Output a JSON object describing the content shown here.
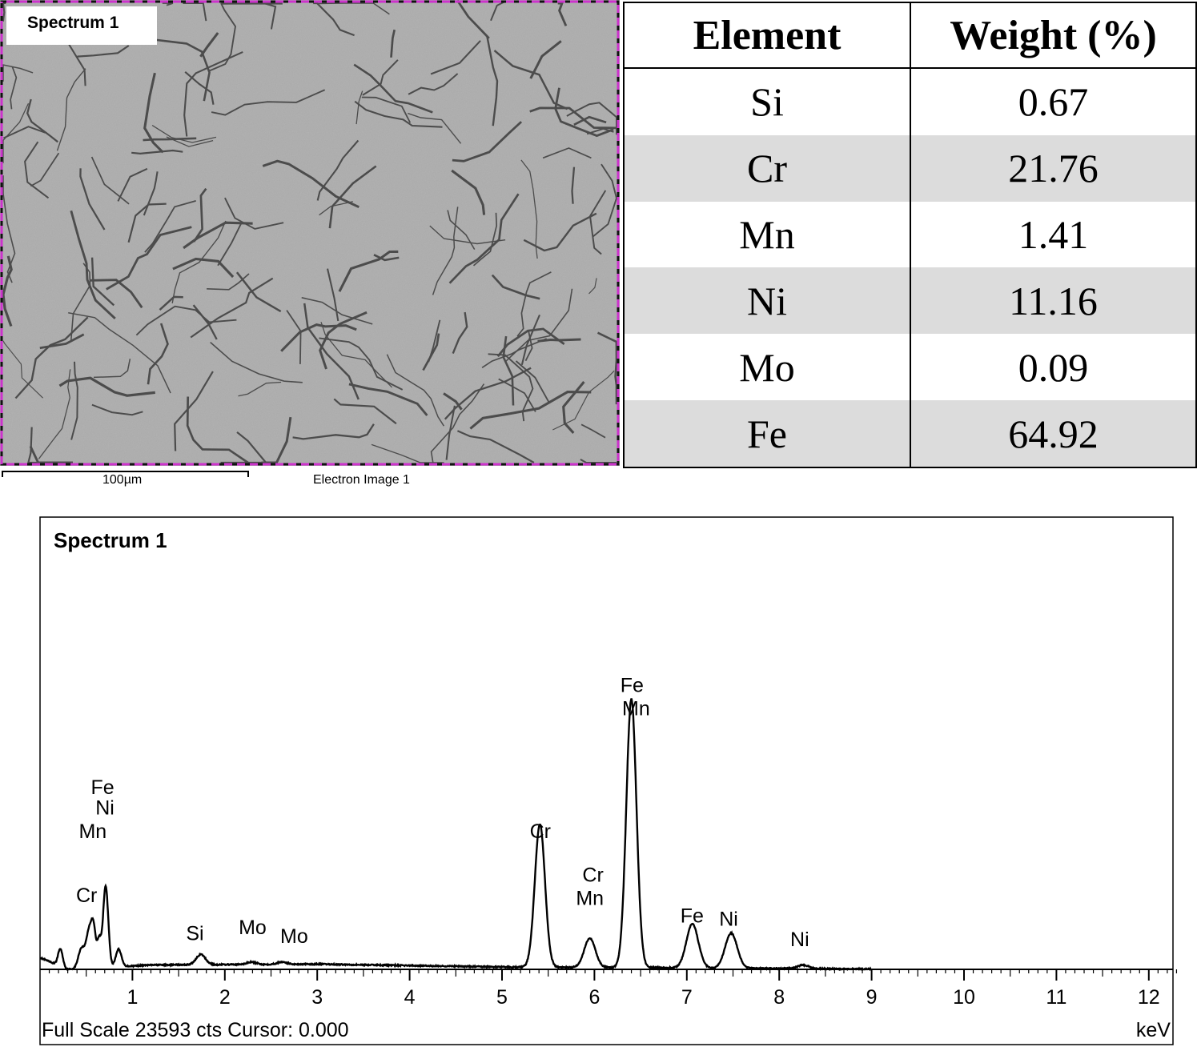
{
  "sem_image": {
    "label": "Spectrum 1",
    "scale_label": "100µm",
    "image_label": "Electron Image 1",
    "frame_color": "#cc33cc"
  },
  "table": {
    "headers": [
      "Element",
      "Weight (%)"
    ],
    "rows": [
      {
        "element": "Si",
        "weight": "0.67"
      },
      {
        "element": "Cr",
        "weight": "21.76"
      },
      {
        "element": "Mn",
        "weight": "1.41"
      },
      {
        "element": "Ni",
        "weight": "11.16"
      },
      {
        "element": "Mo",
        "weight": "0.09"
      },
      {
        "element": "Fe",
        "weight": "64.92"
      }
    ]
  },
  "chart_data": {
    "type": "line",
    "title": "Spectrum 1",
    "xlabel": "keV",
    "xlim": [
      0,
      12.3
    ],
    "xticks": [
      1,
      2,
      3,
      4,
      5,
      6,
      7,
      8,
      9,
      10,
      11,
      12
    ],
    "full_scale_counts": 23593,
    "footer": "Full Scale 23593 cts Cursor: 0.000",
    "grid": false,
    "peaks": [
      {
        "keV": 0.22,
        "rel": 0.06,
        "w": 0.025
      },
      {
        "keV": 0.45,
        "rel": 0.07,
        "w": 0.035
      },
      {
        "keV": 0.53,
        "rel": 0.12,
        "w": 0.03
      },
      {
        "keV": 0.58,
        "rel": 0.13,
        "w": 0.025
      },
      {
        "keV": 0.64,
        "rel": 0.09,
        "w": 0.02
      },
      {
        "keV": 0.71,
        "rel": 0.28,
        "w": 0.028
      },
      {
        "keV": 0.85,
        "rel": 0.06,
        "w": 0.03
      },
      {
        "keV": 1.74,
        "rel": 0.035,
        "w": 0.05
      },
      {
        "keV": 2.29,
        "rel": 0.008,
        "w": 0.05
      },
      {
        "keV": 2.62,
        "rel": 0.008,
        "w": 0.05
      },
      {
        "keV": 5.41,
        "rel": 0.49,
        "w": 0.055
      },
      {
        "keV": 5.95,
        "rel": 0.1,
        "w": 0.06
      },
      {
        "keV": 6.4,
        "rel": 0.92,
        "w": 0.055
      },
      {
        "keV": 7.06,
        "rel": 0.15,
        "w": 0.065
      },
      {
        "keV": 7.48,
        "rel": 0.12,
        "w": 0.065
      },
      {
        "keV": 8.26,
        "rel": 0.012,
        "w": 0.06
      }
    ],
    "baseline": [
      {
        "keV": 0.0,
        "rel": 0.04
      },
      {
        "keV": 0.3,
        "rel": 0.0
      },
      {
        "keV": 1.2,
        "rel": 0.015
      },
      {
        "keV": 3.0,
        "rel": 0.018
      },
      {
        "keV": 5.0,
        "rel": 0.008
      },
      {
        "keV": 8.0,
        "rel": 0.003
      },
      {
        "keV": 9.0,
        "rel": 0.001
      },
      {
        "keV": 12.3,
        "rel": 0.0
      }
    ],
    "annotations": [
      {
        "text": "Fe",
        "keV": 0.55,
        "level": 0.6
      },
      {
        "text": "Ni",
        "keV": 0.6,
        "level": 0.53
      },
      {
        "text": "Mn",
        "keV": 0.42,
        "level": 0.45
      },
      {
        "text": "Cr",
        "keV": 0.39,
        "level": 0.23
      },
      {
        "text": "Si",
        "keV": 1.58,
        "level": 0.1
      },
      {
        "text": "Mo",
        "keV": 2.15,
        "level": 0.12
      },
      {
        "text": "Mo",
        "keV": 2.6,
        "level": 0.09
      },
      {
        "text": "Cr",
        "keV": 5.3,
        "level": 0.45
      },
      {
        "text": "Cr",
        "keV": 5.87,
        "level": 0.3
      },
      {
        "text": "Mn",
        "keV": 5.8,
        "level": 0.22
      },
      {
        "text": "Fe",
        "keV": 6.28,
        "level": 0.95
      },
      {
        "text": "Mn",
        "keV": 6.3,
        "level": 0.87
      },
      {
        "text": "Fe",
        "keV": 6.93,
        "level": 0.16
      },
      {
        "text": "Ni",
        "keV": 7.35,
        "level": 0.15
      },
      {
        "text": "Ni",
        "keV": 8.12,
        "level": 0.08
      }
    ]
  }
}
